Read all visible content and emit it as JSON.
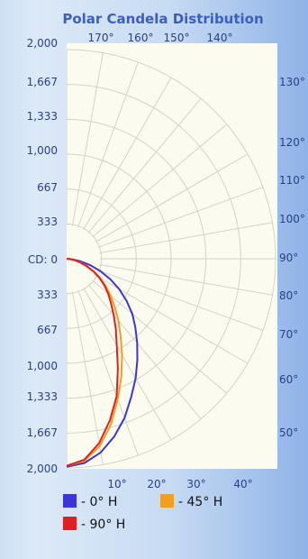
{
  "chart_data": {
    "type": "polar",
    "title": "Polar Candela Distribution",
    "radial_label_prefix": "CD: ",
    "radial_ticks_upper": [
      "2,000",
      "1,667",
      "1,333",
      "1,000",
      "667",
      "333"
    ],
    "radial_ticks_center": "0",
    "radial_ticks_lower": [
      "333",
      "667",
      "1,000",
      "1,333",
      "1,667",
      "2,000"
    ],
    "angle_labels_top": [
      "170°",
      "160°",
      "150°",
      "140°"
    ],
    "angle_labels_right": [
      "130°",
      "120°",
      "110°",
      "100°",
      "90°",
      "80°",
      "70°",
      "60°",
      "50°"
    ],
    "angle_labels_bottom": [
      "10°",
      "20°",
      "30°",
      "40°"
    ],
    "rmax": 2000,
    "series": [
      {
        "name": "- 0° H",
        "color": "#3b35d8",
        "angles": [
          0,
          5,
          10,
          15,
          20,
          25,
          30,
          35,
          40,
          45,
          50,
          55,
          60,
          65,
          70,
          75,
          80,
          85,
          90
        ],
        "values": [
          1990,
          1960,
          1880,
          1760,
          1620,
          1460,
          1320,
          1180,
          1050,
          930,
          820,
          700,
          580,
          460,
          340,
          230,
          130,
          55,
          0
        ]
      },
      {
        "name": "- 45° H",
        "color": "#f0a020",
        "angles": [
          0,
          5,
          10,
          15,
          20,
          25,
          30,
          35,
          40,
          45,
          50,
          55,
          60,
          65,
          70,
          75,
          80,
          85,
          90
        ],
        "values": [
          1980,
          1940,
          1820,
          1640,
          1430,
          1240,
          1060,
          900,
          770,
          650,
          550,
          460,
          370,
          290,
          210,
          140,
          80,
          30,
          0
        ]
      },
      {
        "name": "- 90° H",
        "color": "#e02020",
        "angles": [
          0,
          5,
          10,
          15,
          20,
          25,
          30,
          35,
          40,
          45,
          50,
          55,
          60,
          65,
          70,
          75,
          80,
          85,
          90
        ],
        "values": [
          1980,
          1930,
          1790,
          1600,
          1400,
          1160,
          960,
          820,
          700,
          600,
          520,
          440,
          360,
          280,
          200,
          130,
          75,
          28,
          0
        ]
      }
    ]
  }
}
